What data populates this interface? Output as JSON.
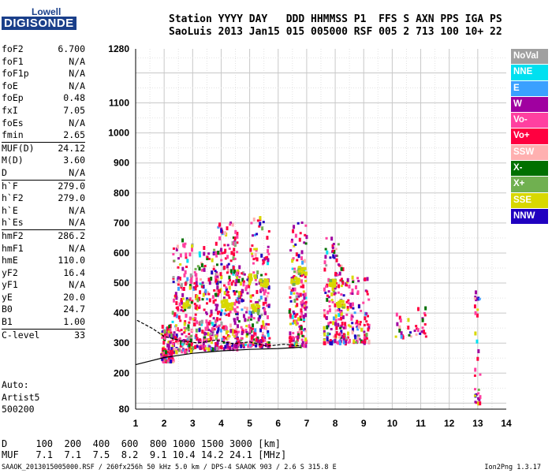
{
  "logo": {
    "top": "Lowell",
    "main": "DIGISONDE"
  },
  "header": {
    "line1": "Station YYYY DAY   DDD HHMMSS P1  FFS S AXN PPS IGA PS",
    "line2": "SaoLuis 2013 Jan15 015 005000 RSF 005 2 713 100 10+ 22"
  },
  "params": [
    {
      "name": "foF2",
      "value": "6.700",
      "sep": false
    },
    {
      "name": "foF1",
      "value": "N/A",
      "sep": false
    },
    {
      "name": "foF1p",
      "value": "N/A",
      "sep": false
    },
    {
      "name": "foE",
      "value": "N/A",
      "sep": false
    },
    {
      "name": "foEp",
      "value": "0.48",
      "sep": false
    },
    {
      "name": "fxI",
      "value": "7.05",
      "sep": false
    },
    {
      "name": "foEs",
      "value": "N/A",
      "sep": false
    },
    {
      "name": "fmin",
      "value": "2.65",
      "sep": false
    },
    {
      "name": "MUF(D)",
      "value": "24.12",
      "sep": true
    },
    {
      "name": "M(D)",
      "value": "3.60",
      "sep": false
    },
    {
      "name": "D",
      "value": "N/A",
      "sep": false
    },
    {
      "name": "h`F",
      "value": "279.0",
      "sep": true
    },
    {
      "name": "h`F2",
      "value": "279.0",
      "sep": false
    },
    {
      "name": "h`E",
      "value": "N/A",
      "sep": false
    },
    {
      "name": "h`Es",
      "value": "N/A",
      "sep": false
    },
    {
      "name": "hmF2",
      "value": "286.2",
      "sep": true
    },
    {
      "name": "hmF1",
      "value": "N/A",
      "sep": false
    },
    {
      "name": "hmE",
      "value": "110.0",
      "sep": false
    },
    {
      "name": "yF2",
      "value": "16.4",
      "sep": false
    },
    {
      "name": "yF1",
      "value": "N/A",
      "sep": false
    },
    {
      "name": "yE",
      "value": "20.0",
      "sep": false
    },
    {
      "name": "B0",
      "value": "24.7",
      "sep": false
    },
    {
      "name": "B1",
      "value": "1.00",
      "sep": false
    },
    {
      "name": "C-level",
      "value": "33",
      "sep": true
    }
  ],
  "auto": {
    "label": "Auto:",
    "line2": "Artist5",
    "line3": "500200"
  },
  "legend": [
    {
      "label": "NoVal",
      "color": "#a0a0a0"
    },
    {
      "label": "NNE",
      "color": "#00e0f0"
    },
    {
      "label": "E",
      "color": "#3aa0ff"
    },
    {
      "label": "W",
      "color": "#a000a0"
    },
    {
      "label": "Vo-",
      "color": "#ff40a0"
    },
    {
      "label": "Vo+",
      "color": "#ff0040"
    },
    {
      "label": "SSW",
      "color": "#ffb0b0"
    },
    {
      "label": "X-",
      "color": "#007000"
    },
    {
      "label": "X+",
      "color": "#70b050"
    },
    {
      "label": "SSE",
      "color": "#d8d800"
    },
    {
      "label": "NNW",
      "color": "#2000c0"
    }
  ],
  "bottom": {
    "d_row": "D     100  200  400  600  800 1000 1500 3000 [km]",
    "muf_row": "MUF   7.1  7.1  7.5  8.2  9.1 10.4 14.2 24.1 [MHz]"
  },
  "footer": {
    "left": "SAAOK_2013015005000.RSF / 260fx256h 50 kHz 5.0 km / DPS-4 SAAOK 903 / 2.6 S 315.8 E",
    "right": "Ion2Png 1.3.17"
  },
  "chart_data": {
    "type": "scatter",
    "xlabel": "",
    "ylabel": "",
    "xlim": [
      1,
      14
    ],
    "ylim": [
      80,
      1280
    ],
    "x_ticks": [
      1,
      2,
      3,
      4,
      5,
      6,
      7,
      8,
      9,
      10,
      11,
      12,
      13,
      14
    ],
    "y_ticks": [
      80,
      200,
      300,
      400,
      500,
      600,
      700,
      800,
      900,
      1000,
      1100,
      1280
    ],
    "grid": true,
    "clusters": [
      {
        "x": [
          1.9,
          2.35
        ],
        "y": [
          240,
          360
        ],
        "n": 140
      },
      {
        "x": [
          2.3,
          3.0
        ],
        "y": [
          270,
          650
        ],
        "n": 180
      },
      {
        "x": [
          3.0,
          3.9
        ],
        "y": [
          280,
          620
        ],
        "n": 200
      },
      {
        "x": [
          3.8,
          4.6
        ],
        "y": [
          280,
          700
        ],
        "n": 210
      },
      {
        "x": [
          4.5,
          5.0
        ],
        "y": [
          290,
          560
        ],
        "n": 90
      },
      {
        "x": [
          5.0,
          5.7
        ],
        "y": [
          290,
          720
        ],
        "n": 180
      },
      {
        "x": [
          6.4,
          7.0
        ],
        "y": [
          290,
          700
        ],
        "n": 170
      },
      {
        "x": [
          7.6,
          8.3
        ],
        "y": [
          300,
          650
        ],
        "n": 150
      },
      {
        "x": [
          8.3,
          9.2
        ],
        "y": [
          300,
          520
        ],
        "n": 120
      },
      {
        "x": [
          10.0,
          11.2
        ],
        "y": [
          320,
          420
        ],
        "n": 35
      },
      {
        "x": [
          12.9,
          13.1
        ],
        "y": [
          100,
          490
        ],
        "n": 30
      }
    ],
    "yellow_blobs": [
      {
        "x": 4.1,
        "y": 430
      },
      {
        "x": 4.3,
        "y": 420
      },
      {
        "x": 5.1,
        "y": 515
      },
      {
        "x": 5.5,
        "y": 500
      },
      {
        "x": 6.6,
        "y": 505
      },
      {
        "x": 6.85,
        "y": 540
      },
      {
        "x": 8.2,
        "y": 430
      },
      {
        "x": 5.2,
        "y": 415
      },
      {
        "x": 2.8,
        "y": 430
      },
      {
        "x": 7.9,
        "y": 500
      }
    ],
    "trace_curves": [
      {
        "name": "",
        "x": [
          1.0,
          2.0,
          3.0,
          4.0,
          5.0,
          6.0,
          6.8
        ],
        "y": [
          228,
          252,
          266,
          274,
          279,
          282,
          286
        ]
      },
      {
        "name": "",
        "x": [
          1.05,
          1.6,
          2.0,
          2.6,
          3.2,
          3.8,
          4.4,
          5.0,
          5.6,
          6.2,
          6.8
        ],
        "y": [
          376,
          348,
          322,
          308,
          300,
          310,
          298,
          304,
          290,
          296,
          290
        ]
      }
    ]
  }
}
